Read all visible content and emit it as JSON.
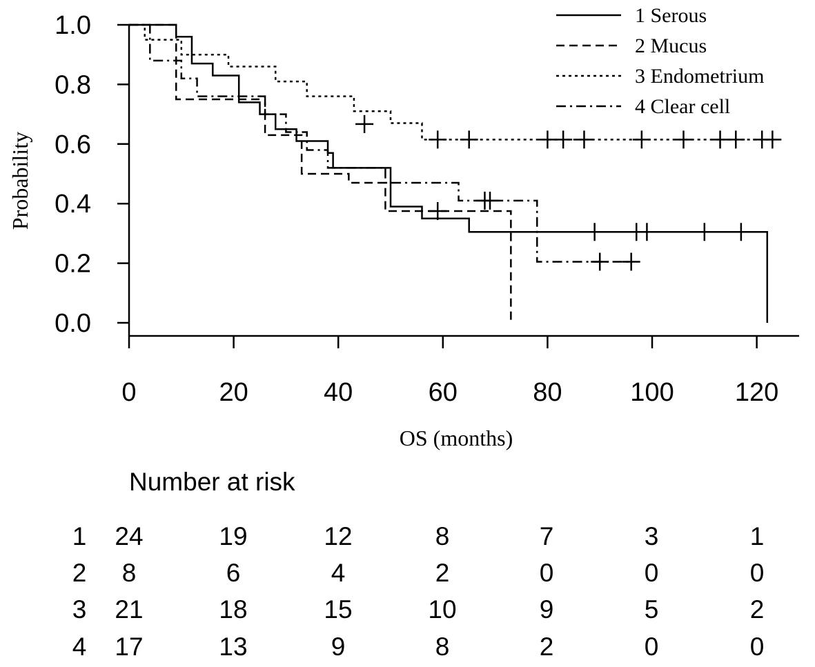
{
  "chart_data": {
    "type": "line",
    "subtype": "kaplan-meier step curves",
    "title": "",
    "xlabel": "OS (months)",
    "ylabel": "Probability",
    "xlim": [
      0,
      125
    ],
    "ylim": [
      0,
      1
    ],
    "x_ticks": [
      0,
      20,
      40,
      60,
      80,
      100,
      120
    ],
    "y_ticks": [
      "0.0",
      "0.2",
      "0.4",
      "0.6",
      "0.8",
      "1.0"
    ],
    "grid": false,
    "legend_position": "top-right",
    "series": [
      {
        "name": "1 Serous",
        "line_style": "solid",
        "steps": [
          [
            0,
            1.0
          ],
          [
            9,
            0.96
          ],
          [
            12,
            0.87
          ],
          [
            16,
            0.83
          ],
          [
            21,
            0.74
          ],
          [
            25,
            0.7
          ],
          [
            28,
            0.65
          ],
          [
            32,
            0.61
          ],
          [
            38,
            0.57
          ],
          [
            39,
            0.52
          ],
          [
            50,
            0.39
          ],
          [
            56,
            0.35
          ],
          [
            65,
            0.305
          ],
          [
            122,
            0.305
          ],
          [
            122,
            0.0
          ]
        ],
        "censored": [
          [
            89,
            0.305
          ],
          [
            97,
            0.305
          ],
          [
            99,
            0.305
          ],
          [
            110,
            0.305
          ],
          [
            117,
            0.305
          ]
        ]
      },
      {
        "name": "2 Mucus",
        "line_style": "dashed",
        "steps": [
          [
            0,
            1.0
          ],
          [
            9,
            0.75
          ],
          [
            22,
            0.75
          ],
          [
            26,
            0.63
          ],
          [
            33,
            0.5
          ],
          [
            42,
            0.47
          ],
          [
            49,
            0.375
          ],
          [
            73,
            0.375
          ],
          [
            73,
            0.0
          ]
        ],
        "censored": [
          [
            59,
            0.375
          ]
        ]
      },
      {
        "name": "3 Endometrium",
        "line_style": "dotted",
        "steps": [
          [
            0,
            1.0
          ],
          [
            3,
            0.95
          ],
          [
            10,
            0.9
          ],
          [
            19,
            0.86
          ],
          [
            28,
            0.81
          ],
          [
            34,
            0.76
          ],
          [
            43,
            0.71
          ],
          [
            50,
            0.67
          ],
          [
            56,
            0.615
          ],
          [
            124,
            0.615
          ]
        ],
        "censored": [
          [
            45,
            0.667
          ],
          [
            59,
            0.615
          ],
          [
            65,
            0.615
          ],
          [
            80,
            0.615
          ],
          [
            83,
            0.615
          ],
          [
            87,
            0.615
          ],
          [
            98,
            0.615
          ],
          [
            106,
            0.615
          ],
          [
            113,
            0.615
          ],
          [
            116,
            0.615
          ],
          [
            121,
            0.615
          ],
          [
            123,
            0.615
          ]
        ]
      },
      {
        "name": "4 Clear cell",
        "line_style": "dotdash",
        "steps": [
          [
            0,
            1.0
          ],
          [
            4,
            0.88
          ],
          [
            10,
            0.82
          ],
          [
            13,
            0.76
          ],
          [
            26,
            0.7
          ],
          [
            30,
            0.64
          ],
          [
            34,
            0.58
          ],
          [
            38,
            0.52
          ],
          [
            49,
            0.47
          ],
          [
            63,
            0.41
          ],
          [
            77,
            0.41
          ],
          [
            78,
            0.205
          ],
          [
            96,
            0.205
          ]
        ],
        "censored": [
          [
            68,
            0.41
          ],
          [
            69,
            0.41
          ],
          [
            90,
            0.205
          ],
          [
            96,
            0.205
          ]
        ]
      }
    ],
    "risk_table": {
      "title": "Number at risk",
      "rows": [
        {
          "label": "1",
          "values": [
            "24",
            "19",
            "12",
            "8",
            "7",
            "3",
            "1"
          ]
        },
        {
          "label": "2",
          "values": [
            "8",
            "6",
            "4",
            "2",
            "0",
            "0",
            "0"
          ]
        },
        {
          "label": "3",
          "values": [
            "21",
            "18",
            "15",
            "10",
            "9",
            "5",
            "2"
          ]
        },
        {
          "label": "4",
          "values": [
            "17",
            "13",
            "9",
            "8",
            "2",
            "0",
            "0"
          ]
        }
      ]
    }
  }
}
